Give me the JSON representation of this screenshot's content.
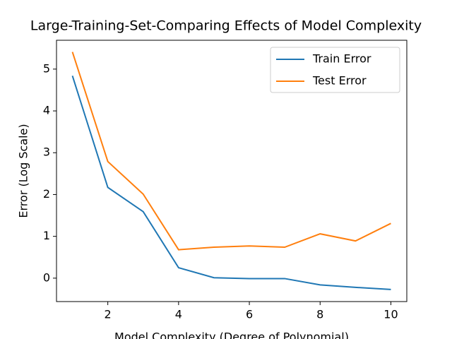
{
  "chart_data": {
    "type": "line",
    "title": "Large-Training-Set-Comparing Effects of Model Complexity",
    "x_label": "Model Complexity (Degree of Polynomial)",
    "y_label": "Error (Log Scale)",
    "x": [
      1,
      2,
      3,
      4,
      5,
      6,
      7,
      8,
      9,
      10
    ],
    "series": [
      {
        "name": "Train Error",
        "color": "#1f77b4",
        "values": [
          4.84,
          2.17,
          1.59,
          0.25,
          0.01,
          -0.01,
          -0.01,
          -0.16,
          -0.22,
          -0.27
        ]
      },
      {
        "name": "Test Error",
        "color": "#ff7f0e",
        "values": [
          5.41,
          2.79,
          2.01,
          0.68,
          0.74,
          0.77,
          0.74,
          1.06,
          0.89,
          1.31
        ]
      }
    ],
    "xlim": [
      0.55,
      10.45
    ],
    "ylim": [
      -0.56,
      5.69
    ],
    "xticks": [
      2,
      4,
      6,
      8,
      10
    ],
    "yticks": [
      0,
      1,
      2,
      3,
      4,
      5
    ],
    "legend": "upper right",
    "grid": false
  }
}
